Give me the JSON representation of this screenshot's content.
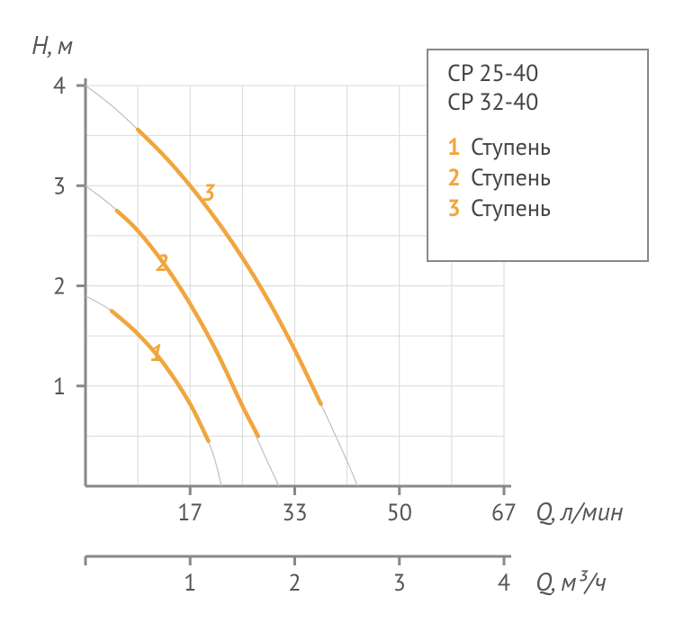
{
  "chart": {
    "type": "line",
    "background_color": "#ffffff",
    "grid_color": "#d9d9d9",
    "axis_color": "#888888",
    "text_color": "#555555",
    "highlight_color": "#f0a63e",
    "thin_color": "#bfbfbf",
    "axis_stroke_width": 3,
    "grid_stroke_width": 1,
    "label_fontsize": 28,
    "tick_fontsize": 26,
    "y_axis_label": "H, м",
    "x_axis1_label": "Q, л/мин",
    "x_axis2_label": "Q, м³/ч",
    "y_ticks": [
      0,
      1,
      2,
      3,
      4
    ],
    "y_lim": [
      0,
      4
    ],
    "x_gridlines": 8,
    "x1_ticks": [
      {
        "pos": 2,
        "label": "17"
      },
      {
        "pos": 4,
        "label": "33"
      },
      {
        "pos": 6,
        "label": "50"
      },
      {
        "pos": 8,
        "label": "67"
      }
    ],
    "x2_ticks": [
      {
        "pos": 2,
        "label": "1"
      },
      {
        "pos": 4,
        "label": "2"
      },
      {
        "pos": 6,
        "label": "3"
      },
      {
        "pos": 8,
        "label": "4"
      }
    ],
    "curves": [
      {
        "id": "1",
        "full": [
          [
            0,
            1.9
          ],
          [
            0.5,
            1.75
          ],
          [
            1,
            1.52
          ],
          [
            1.5,
            1.22
          ],
          [
            2,
            0.82
          ],
          [
            2.4,
            0.38
          ],
          [
            2.6,
            0.0
          ]
        ],
        "highlight": [
          [
            0.5,
            1.75
          ],
          [
            1,
            1.52
          ],
          [
            1.5,
            1.22
          ],
          [
            2,
            0.82
          ],
          [
            2.35,
            0.45
          ]
        ],
        "num_pos": [
          1.35,
          1.25
        ]
      },
      {
        "id": "2",
        "full": [
          [
            0,
            3.0
          ],
          [
            0.5,
            2.8
          ],
          [
            1,
            2.55
          ],
          [
            1.5,
            2.22
          ],
          [
            2,
            1.82
          ],
          [
            2.5,
            1.35
          ],
          [
            3,
            0.8
          ],
          [
            3.5,
            0.22
          ],
          [
            3.7,
            0.0
          ]
        ],
        "highlight": [
          [
            0.6,
            2.75
          ],
          [
            1,
            2.55
          ],
          [
            1.5,
            2.22
          ],
          [
            2,
            1.82
          ],
          [
            2.5,
            1.35
          ],
          [
            3,
            0.8
          ],
          [
            3.3,
            0.5
          ]
        ],
        "num_pos": [
          1.45,
          2.15
        ]
      },
      {
        "id": "3",
        "full": [
          [
            0,
            4.0
          ],
          [
            0.5,
            3.8
          ],
          [
            1,
            3.56
          ],
          [
            1.5,
            3.3
          ],
          [
            2,
            3.0
          ],
          [
            2.5,
            2.66
          ],
          [
            3,
            2.28
          ],
          [
            3.5,
            1.85
          ],
          [
            4,
            1.36
          ],
          [
            4.5,
            0.82
          ],
          [
            5,
            0.25
          ],
          [
            5.2,
            0.0
          ]
        ],
        "highlight": [
          [
            1.0,
            3.56
          ],
          [
            1.5,
            3.3
          ],
          [
            2,
            3.0
          ],
          [
            2.5,
            2.66
          ],
          [
            3,
            2.28
          ],
          [
            3.5,
            1.85
          ],
          [
            4,
            1.36
          ],
          [
            4.5,
            0.82
          ]
        ],
        "num_pos": [
          2.35,
          2.85
        ]
      }
    ],
    "legend": {
      "border_color": "#888888",
      "titles": [
        "CP 25-40",
        "CP 32-40"
      ],
      "items": [
        {
          "num": "1",
          "word": "Ступень"
        },
        {
          "num": "2",
          "word": "Ступень"
        },
        {
          "num": "3",
          "word": "Ступень"
        }
      ]
    }
  }
}
